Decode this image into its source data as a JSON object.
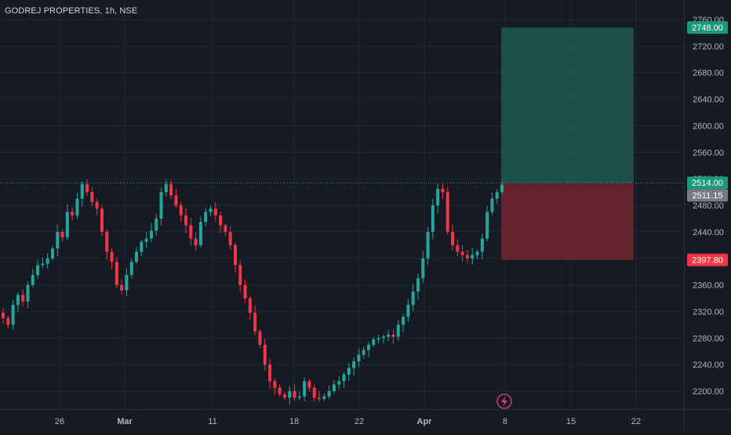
{
  "header": {
    "title": "GODREJ PROPERTIES, 1h, NSE"
  },
  "colors": {
    "background": "#161a25",
    "grid": "#232631",
    "axis_text": "#b2b5be",
    "bull": "#26a69a",
    "bear": "#f23645",
    "target_zone": "#1f5a4f",
    "stop_zone": "#6b2530",
    "target_label": "#1b9a7b",
    "stop_label": "#f23645",
    "price_label": "#787b86",
    "entry_label": "#1b9a7b",
    "dotted_line": "#26a69a"
  },
  "chart_data": {
    "type": "candlestick",
    "symbol": "GODREJ PROPERTIES",
    "interval": "1h",
    "exchange": "NSE",
    "y_ticks": [
      "2760.00",
      "2720.00",
      "2680.00",
      "2640.00",
      "2600.00",
      "2560.00",
      "2520.00",
      "2480.00",
      "2440.00",
      "2400.00",
      "2360.00",
      "2320.00",
      "2280.00",
      "2240.00",
      "2200.00"
    ],
    "ylim": [
      2190,
      2770
    ],
    "x_ticks": [
      "26",
      "Mar",
      "11",
      "18",
      "22",
      "Apr",
      "8",
      "15",
      "22"
    ],
    "price_labels": {
      "target": "2748.00",
      "entry": "2514.00",
      "current": "2511.15",
      "stop": "2397.80"
    },
    "position": {
      "entry": 2514.0,
      "target": 2748.0,
      "stop": 2397.8
    },
    "close_path": [
      2310,
      2300,
      2330,
      2345,
      2335,
      2360,
      2375,
      2390,
      2392,
      2400,
      2415,
      2440,
      2432,
      2470,
      2465,
      2490,
      2512,
      2500,
      2485,
      2475,
      2440,
      2410,
      2395,
      2360,
      2352,
      2375,
      2395,
      2410,
      2425,
      2430,
      2442,
      2460,
      2500,
      2512,
      2495,
      2480,
      2465,
      2450,
      2430,
      2420,
      2455,
      2470,
      2475,
      2465,
      2450,
      2440,
      2420,
      2390,
      2360,
      2340,
      2318,
      2290,
      2270,
      2240,
      2215,
      2205,
      2195,
      2190,
      2200,
      2190,
      2192,
      2215,
      2205,
      2190,
      2188,
      2192,
      2200,
      2210,
      2215,
      2225,
      2235,
      2245,
      2255,
      2262,
      2270,
      2278,
      2280,
      2282,
      2285,
      2282,
      2300,
      2312,
      2330,
      2350,
      2370,
      2400,
      2440,
      2480,
      2505,
      2500,
      2440,
      2420,
      2410,
      2405,
      2400,
      2405,
      2410,
      2430,
      2470,
      2490,
      2500,
      2511.15
    ]
  },
  "footer": {
    "icon": "lightning-icon"
  }
}
